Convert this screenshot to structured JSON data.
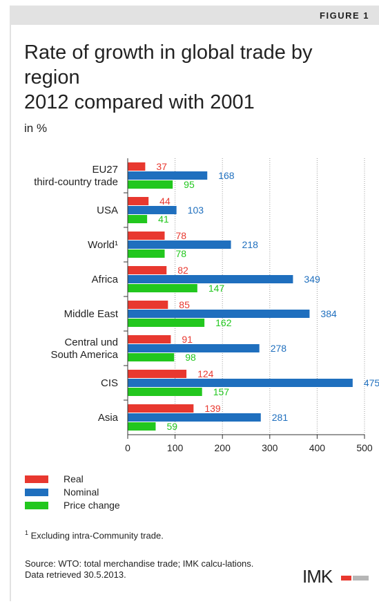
{
  "figure_label": "FIGURE 1",
  "title_lines": [
    "Rate of growth in global trade by",
    "region",
    "2012 compared with 2001"
  ],
  "unit": "in %",
  "colors": {
    "real": "#e8382f",
    "nominal": "#1f6fbe",
    "price_change": "#22c71e",
    "grid": "#999999"
  },
  "legend": [
    {
      "label": "Real",
      "color": "#e8382f"
    },
    {
      "label": "Nominal",
      "color": "#1f6fbe"
    },
    {
      "label": "Price change",
      "color": "#22c71e"
    }
  ],
  "footnote": {
    "marker": "1",
    "text": " Excluding intra-Community trade."
  },
  "source_text": "Source: WTO: total merchandise trade; IMK calcu-lations.",
  "retrieved_text": "Data retrieved 30.5.2013.",
  "logo_text": "IMK",
  "chart_data": {
    "type": "bar",
    "orientation": "horizontal",
    "categories": [
      [
        "EU27",
        "third-country trade"
      ],
      [
        "USA"
      ],
      [
        "World¹"
      ],
      [
        "Africa"
      ],
      [
        "Middle East"
      ],
      [
        "Central und",
        "South America"
      ],
      [
        "CIS"
      ],
      [
        "Asia"
      ]
    ],
    "series": [
      {
        "name": "Real",
        "values": [
          37,
          44,
          78,
          82,
          85,
          91,
          124,
          139
        ]
      },
      {
        "name": "Nominal",
        "values": [
          168,
          103,
          218,
          349,
          384,
          278,
          475,
          281
        ]
      },
      {
        "name": "Price change",
        "values": [
          95,
          41,
          78,
          147,
          162,
          98,
          157,
          59
        ]
      }
    ],
    "xlim": [
      0,
      500
    ],
    "xticks": [
      0,
      100,
      200,
      300,
      400,
      500
    ],
    "grid": "vertical dotted"
  }
}
